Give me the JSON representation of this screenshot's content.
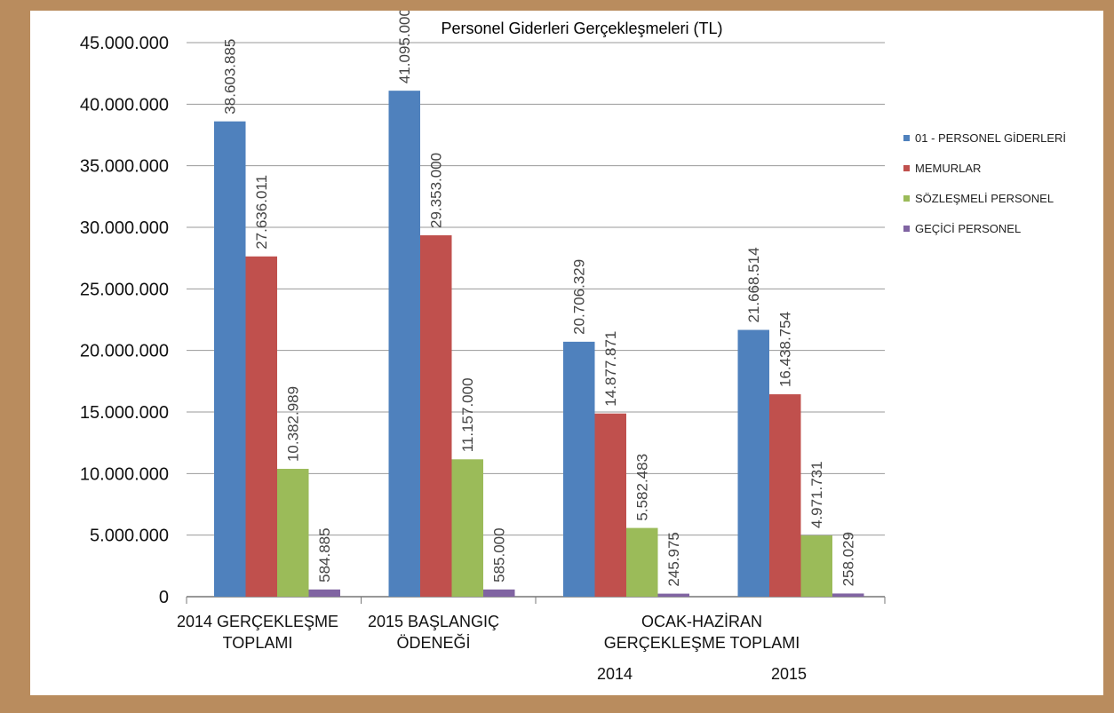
{
  "chart_data": {
    "type": "bar",
    "title": "Personel Giderleri Gerçekleşmeleri (TL)",
    "xlabel": "",
    "ylabel": "",
    "ylim": [
      0,
      45000000
    ],
    "yticks": [
      0,
      5000000,
      10000000,
      15000000,
      20000000,
      25000000,
      30000000,
      35000000,
      40000000,
      45000000
    ],
    "ytick_labels": [
      "0",
      "5.000.000",
      "10.000.000",
      "15.000.000",
      "20.000.000",
      "25.000.000",
      "30.000.000",
      "35.000.000",
      "40.000.000",
      "45.000.000"
    ],
    "categories": [
      "2014 GERÇEKLEŞME TOPLAMI",
      "2015 BAŞLANGIÇ ÖDENEĞİ",
      "2014",
      "2015"
    ],
    "category_label_lines": [
      [
        "2014 GERÇEKLEŞME",
        "TOPLAMI"
      ],
      [
        "2015 BAŞLANGIÇ",
        "ÖDENEĞİ"
      ],
      [
        "2014"
      ],
      [
        "2015"
      ]
    ],
    "group_label_lines": [
      "OCAK-HAZİRAN",
      "GERÇEKLEŞME TOPLAMI"
    ],
    "series": [
      {
        "name": "01 - PERSONEL GİDERLERİ",
        "color": "#4f81bd",
        "values": [
          38603885,
          41095000,
          20706329,
          21668514
        ],
        "labels": [
          "38.603.885",
          "41.095.000",
          "20.706.329",
          "21.668.514"
        ]
      },
      {
        "name": "MEMURLAR",
        "color": "#c0504d",
        "values": [
          27636011,
          29353000,
          14877871,
          16438754
        ],
        "labels": [
          "27.636.011",
          "29.353.000",
          "14.877.871",
          "16.438.754"
        ]
      },
      {
        "name": "SÖZLEŞMELİ PERSONEL",
        "color": "#9bbb59",
        "values": [
          10382989,
          11157000,
          5582483,
          4971731
        ],
        "labels": [
          "10.382.989",
          "11.157.000",
          "5.582.483",
          "4.971.731"
        ]
      },
      {
        "name": "GEÇİCİ PERSONEL",
        "color": "#8064a2",
        "values": [
          584885,
          585000,
          245975,
          258029
        ],
        "labels": [
          "584.885",
          "585.000",
          "245.975",
          "258.029"
        ]
      }
    ],
    "grid": true,
    "legend_position": "right"
  }
}
